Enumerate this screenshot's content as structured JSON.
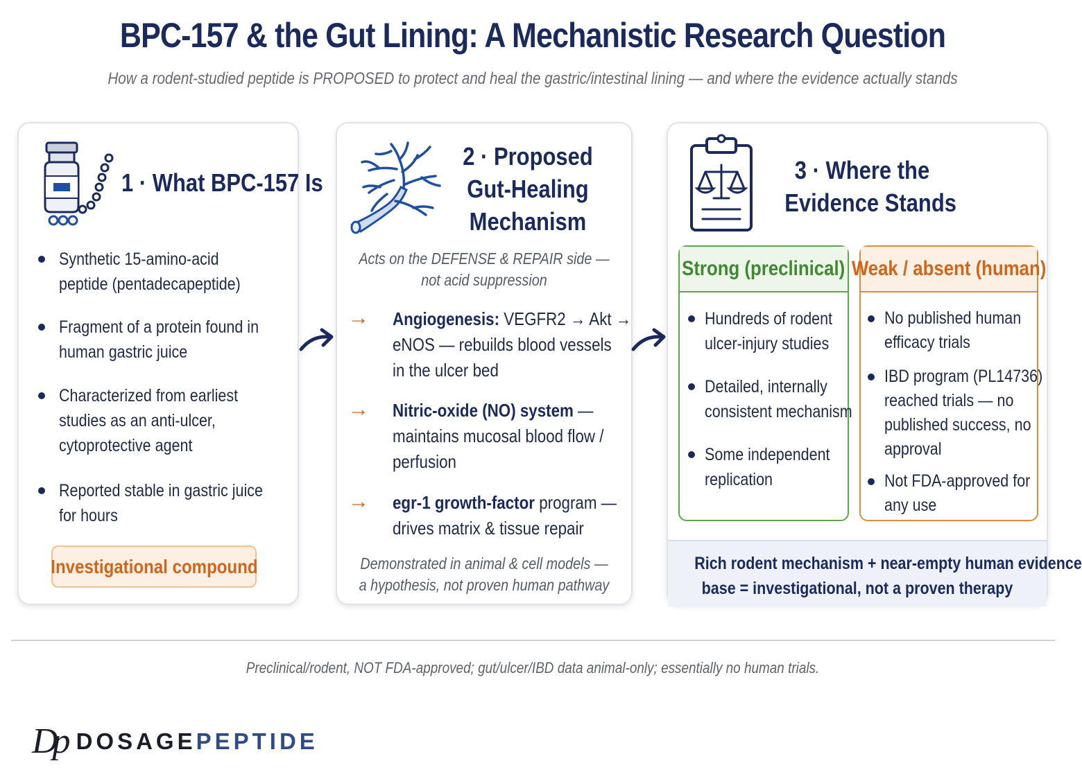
{
  "header": {
    "title": "BPC-157 & the Gut Lining: A Mechanistic Research Question",
    "subtitle": "How a rodent-studied peptide is PROPOSED to protect and heal the gastric/intestinal lining — and where the evidence actually stands"
  },
  "panel1": {
    "heading": "1 · What BPC-157 Is",
    "bullets": [
      {
        "line1": "Synthetic 15-amino-acid",
        "line2": "peptide (pentadecapeptide)"
      },
      {
        "line1": "Fragment of a protein found in",
        "line2": "human gastric juice"
      },
      {
        "line1": "Characterized from earliest",
        "line2": "studies as an anti-ulcer,",
        "line3": "cytoprotective agent"
      },
      {
        "line1": "Reported stable in gastric juice",
        "line2": "for hours"
      }
    ],
    "badge": "Investigational compound"
  },
  "panel2": {
    "heading_line1": "2 · Proposed",
    "heading_line2": "Gut-Healing",
    "heading_line3": "Mechanism",
    "note_line1": "Acts on the DEFENSE & REPAIR side —",
    "note_line2": "not acid suppression",
    "mechanisms": [
      {
        "bold": "Angiogenesis:",
        "rest1": " VEGFR2 → Akt →",
        "line2": "eNOS — rebuilds blood vessels",
        "line3": "in the ulcer bed"
      },
      {
        "bold": "Nitric-oxide (NO) system",
        "rest1": " —",
        "line2": "maintains mucosal blood flow /",
        "line3": "perfusion"
      },
      {
        "bold": "egr-1 growth-factor",
        "rest1": " program —",
        "line2": "drives matrix & tissue repair"
      }
    ],
    "footer_line1": "Demonstrated in animal & cell models —",
    "footer_line2": "a hypothesis, not proven human pathway"
  },
  "panel3": {
    "heading_line1": "3 · Where the",
    "heading_line2": "Evidence Stands",
    "strong": {
      "title": "Strong (preclinical)",
      "items": [
        {
          "line1": "Hundreds of rodent",
          "line2": "ulcer-injury studies"
        },
        {
          "line1": "Detailed, internally",
          "line2": "consistent mechanism"
        },
        {
          "line1": "Some independent",
          "line2": "replication"
        }
      ]
    },
    "weak": {
      "title": "Weak / absent (human)",
      "items": [
        {
          "line1": "No published human",
          "line2": "efficacy trials"
        },
        {
          "line1": "IBD program (PL14736)",
          "line2": "reached trials — no",
          "line3": "published success, no",
          "line4": "approval"
        },
        {
          "line1": "Not FDA-approved for",
          "line2": "any use"
        }
      ]
    },
    "summary_line1": "Rich rodent mechanism + near-empty human evidence",
    "summary_line2": "base = investigational, not a proven therapy"
  },
  "footer": {
    "disclaimer": "Preclinical/rodent, NOT FDA-approved; gut/ulcer/IBD data animal-only; essentially no human trials.",
    "logo_mark": "Dp",
    "brand_part1": "DOSAGE",
    "brand_part2": "PEPTIDE"
  },
  "icons": {
    "panel1": "peptide-vial-icon",
    "panel2": "blood-vessel-icon",
    "panel3": "clipboard-scales-icon",
    "flow": "curved-arrow-icon"
  },
  "colors": {
    "navy": "#1b2a5c",
    "orange": "#d0661c",
    "green": "#3e8a32",
    "muted": "#666a72"
  }
}
